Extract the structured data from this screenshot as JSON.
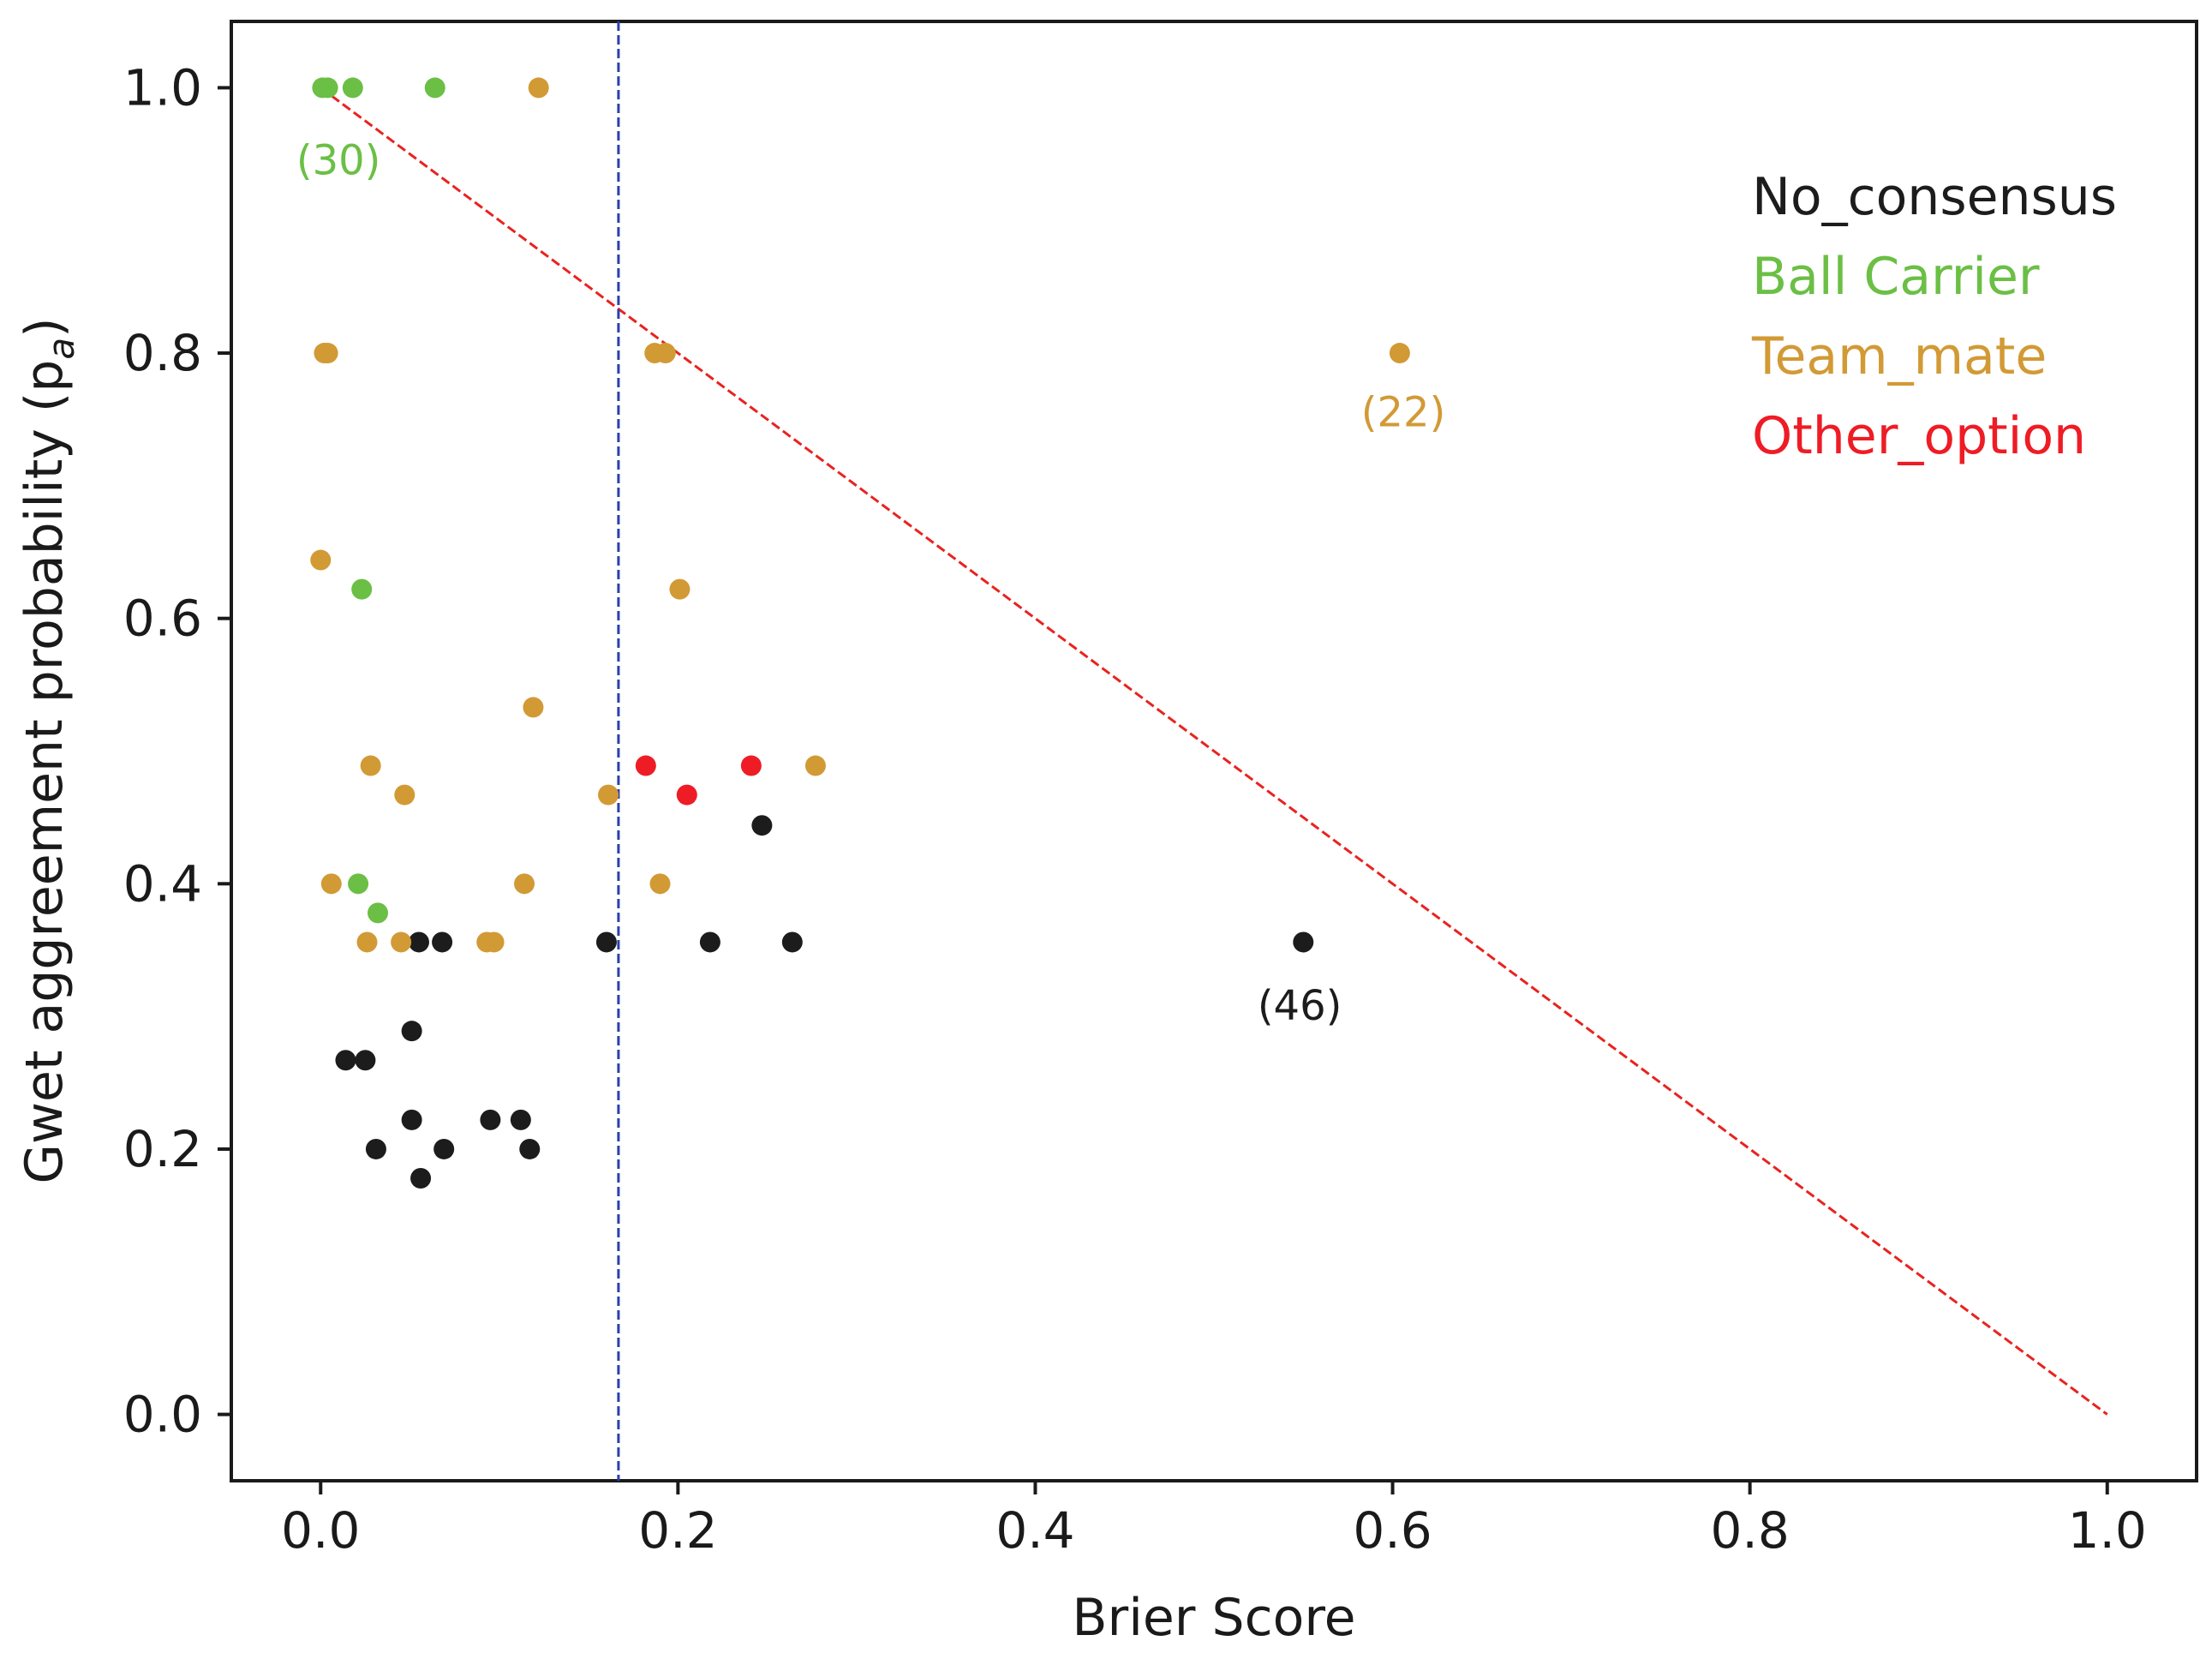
{
  "chart_data": {
    "type": "scatter",
    "title": "",
    "xlabel": "Brier Score",
    "ylabel": "Gwet aggreement probability (p",
    "ylabel_subscript": "a",
    "ylabel_close": ")",
    "xlim": [
      -0.05,
      1.05
    ],
    "ylim": [
      -0.05,
      1.05
    ],
    "xticks": [
      0.0,
      0.2,
      0.4,
      0.6,
      0.8,
      1.0
    ],
    "yticks": [
      0.0,
      0.2,
      0.4,
      0.6,
      0.8,
      1.0
    ],
    "xtick_labels": [
      "0.0",
      "0.2",
      "0.4",
      "0.6",
      "0.8",
      "1.0"
    ],
    "ytick_labels": [
      "0.0",
      "0.2",
      "0.4",
      "0.6",
      "0.8",
      "1.0"
    ],
    "grid": false,
    "legend_position": "top-right",
    "series": [
      {
        "name": "No_consensus",
        "color": "#1c1c1c",
        "points": [
          [
            0.055,
            0.356
          ],
          [
            0.068,
            0.356
          ],
          [
            0.16,
            0.356
          ],
          [
            0.218,
            0.356
          ],
          [
            0.264,
            0.356
          ],
          [
            0.55,
            0.356
          ],
          [
            0.247,
            0.444
          ],
          [
            0.051,
            0.289
          ],
          [
            0.014,
            0.267
          ],
          [
            0.025,
            0.267
          ],
          [
            0.051,
            0.222
          ],
          [
            0.095,
            0.222
          ],
          [
            0.112,
            0.222
          ],
          [
            0.031,
            0.2
          ],
          [
            0.069,
            0.2
          ],
          [
            0.117,
            0.2
          ],
          [
            0.056,
            0.178
          ]
        ]
      },
      {
        "name": "Ball Carrier",
        "color": "#6bbf45",
        "points": [
          [
            0.001,
            1.0
          ],
          [
            0.004,
            1.0
          ],
          [
            0.018,
            1.0
          ],
          [
            0.064,
            1.0
          ],
          [
            0.023,
            0.622
          ],
          [
            0.021,
            0.4
          ],
          [
            0.032,
            0.378
          ]
        ]
      },
      {
        "name": "Team_mate",
        "color": "#d29a35",
        "points": [
          [
            0.122,
            1.0
          ],
          [
            0.002,
            0.8
          ],
          [
            0.004,
            0.8
          ],
          [
            0.187,
            0.8
          ],
          [
            0.193,
            0.8
          ],
          [
            0.604,
            0.8
          ],
          [
            0.0,
            0.644
          ],
          [
            0.201,
            0.622
          ],
          [
            0.119,
            0.533
          ],
          [
            0.028,
            0.489
          ],
          [
            0.277,
            0.489
          ],
          [
            0.047,
            0.467
          ],
          [
            0.161,
            0.467
          ],
          [
            0.006,
            0.4
          ],
          [
            0.114,
            0.4
          ],
          [
            0.19,
            0.4
          ],
          [
            0.026,
            0.356
          ],
          [
            0.045,
            0.356
          ],
          [
            0.093,
            0.356
          ],
          [
            0.097,
            0.356
          ]
        ]
      },
      {
        "name": "Other_option",
        "color": "#ee1c25",
        "points": [
          [
            0.182,
            0.489
          ],
          [
            0.241,
            0.489
          ],
          [
            0.205,
            0.467
          ]
        ]
      }
    ],
    "reference_lines": [
      {
        "kind": "diagonal",
        "from": [
          0.0,
          1.0
        ],
        "to": [
          1.0,
          0.0
        ],
        "color": "#e8231f",
        "style": "dashed"
      },
      {
        "kind": "vertical",
        "x": 0.1667,
        "color": "#2b3fae",
        "style": "dashed"
      }
    ],
    "annotations": [
      {
        "text": "(30)",
        "x": 0.01,
        "y": 0.945,
        "color": "#6bbf45"
      },
      {
        "text": "(22)",
        "x": 0.606,
        "y": 0.755,
        "color": "#d29a35"
      },
      {
        "text": "(46)",
        "x": 0.548,
        "y": 0.308,
        "color": "#1c1c1c"
      }
    ]
  }
}
